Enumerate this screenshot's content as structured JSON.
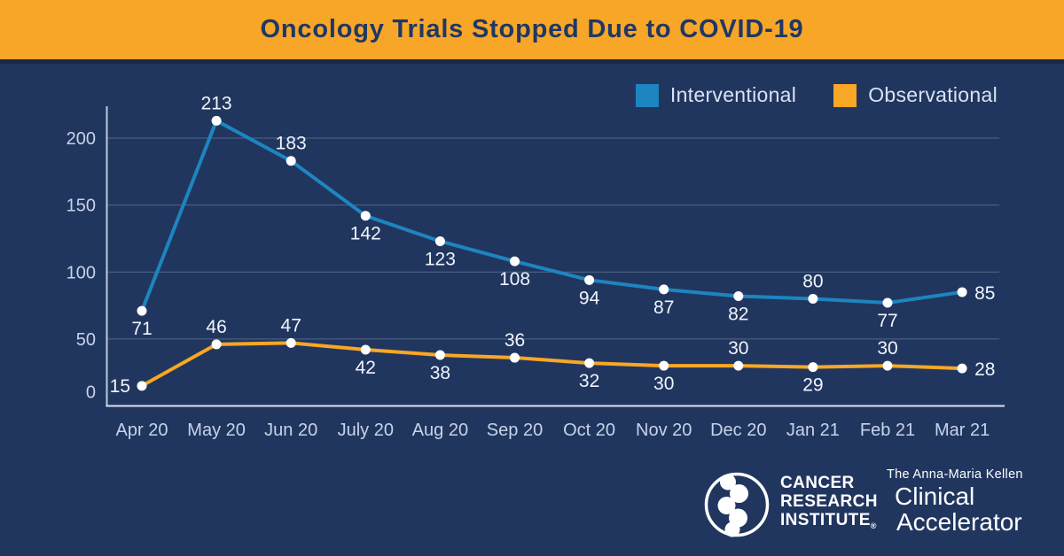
{
  "header": {
    "title": "Oncology Trials Stopped Due to COVID-19"
  },
  "colors": {
    "background": "#21365f",
    "banner": "#f8a628",
    "title_text": "#1f3864",
    "interventional": "#1d85c0",
    "observational": "#f9a724",
    "axis_text": "#c7d3e9",
    "data_label_text": "#f0f4fc",
    "marker": "#ffffff"
  },
  "chart_data": {
    "type": "line",
    "title": "Oncology Trials Stopped Due to COVID-19",
    "categories": [
      "Apr 20",
      "May 20",
      "Jun 20",
      "July 20",
      "Aug 20",
      "Sep 20",
      "Oct 20",
      "Nov 20",
      "Dec 20",
      "Jan 21",
      "Feb 21",
      "Mar 21"
    ],
    "series": [
      {
        "name": "Interventional",
        "color": "#1d85c0",
        "values": [
          71,
          213,
          183,
          142,
          123,
          108,
          94,
          87,
          82,
          80,
          77,
          85
        ],
        "label_positions": [
          "below",
          "above",
          "above",
          "below",
          "below",
          "below",
          "below",
          "below",
          "below",
          "above",
          "below",
          "right"
        ]
      },
      {
        "name": "Observational",
        "color": "#f9a724",
        "values": [
          15,
          46,
          47,
          42,
          38,
          36,
          32,
          30,
          30,
          29,
          30,
          28
        ],
        "label_positions": [
          "left",
          "above",
          "above",
          "below",
          "below",
          "above",
          "below",
          "below",
          "above",
          "below",
          "above",
          "right"
        ]
      }
    ],
    "yticks": [
      0,
      50,
      100,
      150,
      200
    ],
    "ylim": [
      0,
      215
    ],
    "xlabel": "",
    "ylabel": "",
    "grid": "horizontal",
    "legend_position": "top-right",
    "point_marker": "white-circle"
  },
  "branding": {
    "cri": {
      "line1": "CANCER",
      "line2": "RESEARCH",
      "line3": "INSTITUTE",
      "reg": "®"
    },
    "accelerator": {
      "tagline": "The Anna-Maria Kellen",
      "line1": "Clinical",
      "line2": "Accelerator"
    }
  }
}
